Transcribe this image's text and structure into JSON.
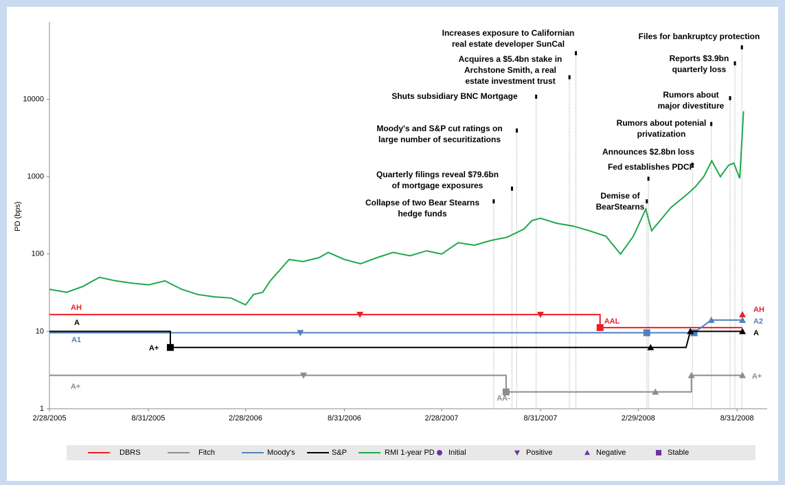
{
  "chart_data": {
    "type": "line",
    "y_label": "PD (bps)",
    "log_scale": true,
    "xlim": [
      "2/28/2005",
      "10/26/2008"
    ],
    "xticks": [
      "2/28/2005",
      "8/31/2005",
      "2/28/2006",
      "8/31/2006",
      "2/28/2007",
      "8/31/2007",
      "2/29/2008",
      "8/31/2008"
    ],
    "ylim": [
      1,
      100000
    ],
    "yticks": [
      1,
      10,
      100,
      1000,
      10000
    ],
    "marker_color": "#7030a0",
    "marker_legend": [
      {
        "name": "Initial",
        "shape": "circle"
      },
      {
        "name": "Positive",
        "shape": "down"
      },
      {
        "name": "Negative",
        "shape": "up"
      },
      {
        "name": "Stable",
        "shape": "square"
      }
    ],
    "series": [
      {
        "name": "DBRS",
        "color": "#ee1c25",
        "x": [
          "2/28/2005",
          "12/20/2007",
          "12/20/2007",
          "9/10/2008"
        ],
        "values": [
          16.5,
          16.5,
          11.2,
          11.2
        ],
        "markers": [
          {
            "x": "9/29/2006",
            "value": 16.5,
            "shape": "down"
          },
          {
            "x": "8/31/2007",
            "value": 16.5,
            "shape": "down"
          },
          {
            "x": "12/20/2007",
            "value": 11.2,
            "shape": "square"
          },
          {
            "x": "9/10/2008",
            "value": 16.5,
            "shape": "up"
          }
        ],
        "labels": [
          "AH",
          "AAL",
          "AH"
        ]
      },
      {
        "name": "Fitch",
        "color": "#8c8c8c",
        "x": [
          "2/28/2005",
          "6/28/2007",
          "6/28/2007",
          "6/7/2008",
          "6/7/2008",
          "9/10/2008"
        ],
        "values": [
          2.7,
          2.7,
          1.65,
          1.65,
          2.7,
          2.7
        ],
        "markers": [
          {
            "x": "6/16/2006",
            "value": 2.7,
            "shape": "down"
          },
          {
            "x": "6/28/2007",
            "value": 1.65,
            "shape": "square"
          },
          {
            "x": "4/1/2008",
            "value": 1.65,
            "shape": "up"
          },
          {
            "x": "6/7/2008",
            "value": 2.7,
            "shape": "up"
          },
          {
            "x": "9/10/2008",
            "value": 2.7,
            "shape": "up"
          }
        ],
        "labels": [
          "A+",
          "AA-",
          "A+"
        ]
      },
      {
        "name": "Moody's",
        "color": "#4f81bd",
        "x": [
          "2/28/2005",
          "6/12/2008",
          "7/14/2008",
          "9/10/2008"
        ],
        "values": [
          9.6,
          9.6,
          14,
          14
        ],
        "markers": [
          {
            "x": "6/10/2006",
            "value": 9.6,
            "shape": "down"
          },
          {
            "x": "3/16/2008",
            "value": 9.6,
            "shape": "square"
          },
          {
            "x": "6/12/2008",
            "value": 9.6,
            "shape": "square"
          },
          {
            "x": "7/14/2008",
            "value": 14,
            "shape": "up"
          },
          {
            "x": "9/10/2008",
            "value": 14,
            "shape": "up"
          }
        ],
        "labels": [
          "A1",
          "A2"
        ]
      },
      {
        "name": "S&P",
        "color": "#000000",
        "x": [
          "2/28/2005",
          "10/11/2005",
          "10/11/2005",
          "5/28/2008",
          "6/5/2008",
          "9/10/2008"
        ],
        "values": [
          10,
          10,
          6.2,
          6.2,
          10,
          10
        ],
        "markers": [
          {
            "x": "10/11/2005",
            "value": 6.2,
            "shape": "square"
          },
          {
            "x": "3/23/2008",
            "value": 6.2,
            "shape": "up"
          },
          {
            "x": "6/5/2008",
            "value": 10,
            "shape": "up"
          },
          {
            "x": "9/10/2008",
            "value": 10,
            "shape": "up"
          }
        ],
        "labels": [
          "A",
          "A+",
          "A"
        ]
      },
      {
        "name": "RMI 1-year PD",
        "color": "#1fa84a",
        "x": [
          "2/28/2005",
          "4/1/2005",
          "5/1/2005",
          "6/1/2005",
          "7/1/2005",
          "8/1/2005",
          "9/1/2005",
          "10/1/2005",
          "11/1/2005",
          "12/1/2005",
          "1/1/2006",
          "2/1/2006",
          "2/28/2006",
          "3/15/2006",
          "4/1/2006",
          "4/15/2006",
          "5/1/2006",
          "5/20/2006",
          "6/15/2006",
          "7/15/2006",
          "8/1/2006",
          "8/31/2006",
          "9/30/2006",
          "10/31/2006",
          "11/30/2006",
          "12/31/2006",
          "1/31/2007",
          "2/28/2007",
          "3/31/2007",
          "4/30/2007",
          "5/31/2007",
          "6/30/2007",
          "7/31/2007",
          "8/15/2007",
          "8/31/2007",
          "9/30/2007",
          "10/31/2007",
          "11/30/2007",
          "12/31/2007",
          "1/27/2008",
          "2/20/2008",
          "3/14/2008",
          "3/25/2008",
          "4/30/2008",
          "5/31/2008",
          "6/15/2008",
          "6/30/2008",
          "7/15/2008",
          "7/31/2008",
          "8/15/2008",
          "8/25/2008",
          "9/5/2008",
          "9/12/2008"
        ],
        "values": [
          35,
          32,
          38,
          50,
          45,
          42,
          40,
          45,
          35,
          30,
          28,
          27,
          22,
          30,
          32,
          45,
          60,
          85,
          80,
          90,
          105,
          85,
          75,
          90,
          105,
          95,
          110,
          100,
          140,
          130,
          150,
          165,
          210,
          270,
          290,
          250,
          230,
          200,
          170,
          100,
          170,
          380,
          200,
          400,
          600,
          750,
          1000,
          1600,
          1000,
          1400,
          1500,
          950,
          7000
        ]
      }
    ],
    "events": [
      {
        "date": "6/5/2007",
        "top": 510,
        "label": [
          "Collapse of two Bear Stearns",
          "hedge funds"
        ]
      },
      {
        "date": "7/9/2007",
        "top": 745,
        "label": [
          "Quarterly filings reveal $79.6bn",
          "of mortgage exposures"
        ]
      },
      {
        "date": "7/18/2007",
        "top": 4200,
        "label": [
          "Moody's and S&P cut ratings on",
          "large number of securitizations"
        ]
      },
      {
        "date": "8/23/2007",
        "top": 11500,
        "label": [
          "Shuts subsidiary BNC Mortgage"
        ]
      },
      {
        "date": "10/24/2007",
        "top": 20500,
        "label": [
          "Acquires a $5.4bn stake in",
          "Archstone Smith, a real",
          "estate investment trust"
        ]
      },
      {
        "date": "11/5/2007",
        "top": 42000,
        "label": [
          "Increases exposure to Californian",
          "real estate developer SunCal"
        ]
      },
      {
        "date": "3/16/2008",
        "top": 510,
        "label": [
          "Demise of",
          "BearStearns"
        ]
      },
      {
        "date": "3/19/2008",
        "top": 1000,
        "label": [
          "Fed establishes PDCF"
        ]
      },
      {
        "date": "6/9/2008",
        "top": 1520,
        "label": [
          "Announces $2.8bn loss"
        ]
      },
      {
        "date": "7/14/2008",
        "top": 5100,
        "label": [
          "Rumors about potenial",
          "privatization"
        ]
      },
      {
        "date": "8/18/2008",
        "top": 11000,
        "label": [
          "Rumors about",
          "major divestiture"
        ]
      },
      {
        "date": "8/27/2008",
        "top": 31000,
        "label": [
          "Reports $3.9bn",
          "quarterly loss"
        ]
      },
      {
        "date": "9/9/2008",
        "top": 50000,
        "label": [
          "Files for bankruptcy protection"
        ]
      }
    ]
  }
}
